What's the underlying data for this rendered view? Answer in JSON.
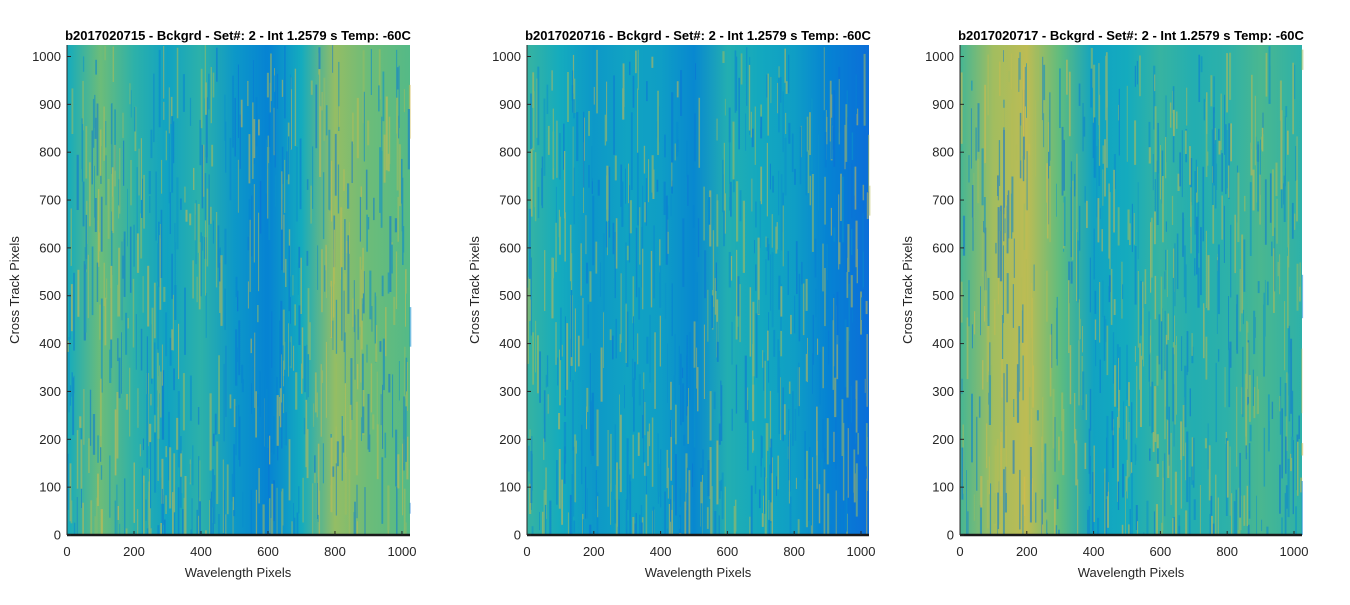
{
  "chart_data": [
    {
      "type": "heatmap",
      "title": "b2017020715 - Bckgrd - Set#: 2 - Int 1.2579 s Temp: -60C",
      "xlabel": "Wavelength Pixels",
      "ylabel": "Cross Track Pixels",
      "xlim": [
        0,
        1024
      ],
      "ylim": [
        0,
        1024
      ],
      "xticks": [
        0,
        200,
        400,
        600,
        800,
        1000
      ],
      "yticks": [
        0,
        100,
        200,
        300,
        400,
        500,
        600,
        700,
        800,
        900,
        1000
      ],
      "colormap": "parula",
      "column_profile": [
        {
          "x": 0,
          "v": 0.45
        },
        {
          "x": 100,
          "v": 0.62
        },
        {
          "x": 200,
          "v": 0.5
        },
        {
          "x": 300,
          "v": 0.42
        },
        {
          "x": 400,
          "v": 0.5
        },
        {
          "x": 500,
          "v": 0.38
        },
        {
          "x": 600,
          "v": 0.3
        },
        {
          "x": 700,
          "v": 0.45
        },
        {
          "x": 800,
          "v": 0.68
        },
        {
          "x": 900,
          "v": 0.62
        },
        {
          "x": 1024,
          "v": 0.58
        }
      ]
    },
    {
      "type": "heatmap",
      "title": "b2017020716 - Bckgrd - Set#: 2 - Int 1.2579 s Temp: -60C",
      "xlabel": "Wavelength Pixels",
      "ylabel": "Cross Track Pixels",
      "xlim": [
        0,
        1024
      ],
      "ylim": [
        0,
        1024
      ],
      "xticks": [
        0,
        200,
        400,
        600,
        800,
        1000
      ],
      "yticks": [
        0,
        100,
        200,
        300,
        400,
        500,
        600,
        700,
        800,
        900,
        1000
      ],
      "colormap": "parula",
      "column_profile": [
        {
          "x": 0,
          "v": 0.52
        },
        {
          "x": 100,
          "v": 0.45
        },
        {
          "x": 200,
          "v": 0.38
        },
        {
          "x": 300,
          "v": 0.42
        },
        {
          "x": 400,
          "v": 0.4
        },
        {
          "x": 500,
          "v": 0.32
        },
        {
          "x": 600,
          "v": 0.48
        },
        {
          "x": 700,
          "v": 0.44
        },
        {
          "x": 800,
          "v": 0.4
        },
        {
          "x": 900,
          "v": 0.3
        },
        {
          "x": 1024,
          "v": 0.22
        }
      ]
    },
    {
      "type": "heatmap",
      "title": "b2017020717 - Bckgrd - Set#: 2 - Int 1.2579 s Temp: -60C",
      "xlabel": "Wavelength Pixels",
      "ylabel": "Cross Track Pixels",
      "xlim": [
        0,
        1024
      ],
      "ylim": [
        0,
        1024
      ],
      "xticks": [
        0,
        200,
        400,
        600,
        800,
        1000
      ],
      "yticks": [
        0,
        100,
        200,
        300,
        400,
        500,
        600,
        700,
        800,
        900,
        1000
      ],
      "colormap": "parula",
      "column_profile": [
        {
          "x": 0,
          "v": 0.55
        },
        {
          "x": 100,
          "v": 0.7
        },
        {
          "x": 200,
          "v": 0.75
        },
        {
          "x": 300,
          "v": 0.6
        },
        {
          "x": 400,
          "v": 0.42
        },
        {
          "x": 500,
          "v": 0.45
        },
        {
          "x": 600,
          "v": 0.52
        },
        {
          "x": 700,
          "v": 0.48
        },
        {
          "x": 800,
          "v": 0.5
        },
        {
          "x": 900,
          "v": 0.56
        },
        {
          "x": 1024,
          "v": 0.5
        }
      ]
    }
  ],
  "colors": {
    "axis": "#262626",
    "baseline": "#1a1a1a",
    "background": "#ffffff"
  }
}
